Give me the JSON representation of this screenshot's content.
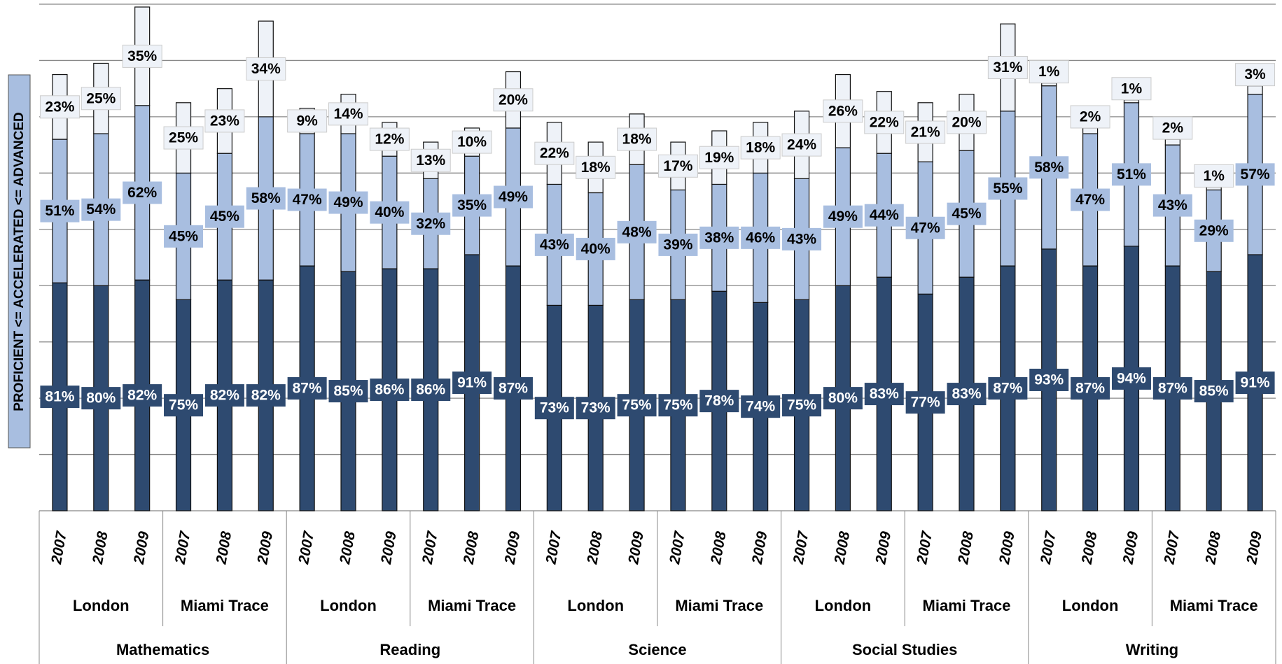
{
  "chart_data": {
    "type": "stacked-bar",
    "y_label": "PROFICIENT <= ACCELERATED <= ADVANCED",
    "categories": [
      "2007",
      "2008",
      "2009",
      "2007",
      "2008",
      "2009",
      "2007",
      "2008",
      "2009",
      "2007",
      "2008",
      "2009",
      "2007",
      "2008",
      "2009",
      "2007",
      "2008",
      "2009",
      "2007",
      "2008",
      "2009",
      "2007",
      "2008",
      "2009",
      "2007",
      "2008",
      "2009",
      "2007",
      "2008",
      "2009"
    ],
    "schools": [
      "London",
      "Miami Trace",
      "London",
      "Miami Trace",
      "London",
      "Miami Trace",
      "London",
      "Miami Trace",
      "London",
      "Miami Trace"
    ],
    "subjects": [
      "Mathematics",
      "Reading",
      "Science",
      "Social Studies",
      "Writing"
    ],
    "series": [
      {
        "color": "#2e4a70",
        "values": [
          81,
          80,
          82,
          75,
          82,
          82,
          87,
          85,
          86,
          86,
          91,
          87,
          73,
          73,
          75,
          75,
          78,
          74,
          75,
          80,
          83,
          77,
          83,
          87,
          93,
          87,
          94,
          87,
          85,
          91
        ],
        "value_labels": [
          "81%",
          "80%",
          "82%",
          "75%",
          "82%",
          "82%",
          "87%",
          "85%",
          "86%",
          "86%",
          "91%",
          "87%",
          "73%",
          "73%",
          "75%",
          "75%",
          "78%",
          "74%",
          "75%",
          "80%",
          "83%",
          "77%",
          "83%",
          "87%",
          "93%",
          "87%",
          "94%",
          "87%",
          "85%",
          "91%"
        ]
      },
      {
        "color": "#a8bee0",
        "values": [
          51,
          54,
          62,
          45,
          45,
          58,
          47,
          49,
          40,
          32,
          35,
          49,
          43,
          40,
          48,
          39,
          38,
          46,
          43,
          49,
          44,
          47,
          45,
          55,
          58,
          47,
          51,
          43,
          29,
          57
        ],
        "value_labels": [
          "51%",
          "54%",
          "62%",
          "45%",
          "45%",
          "58%",
          "47%",
          "49%",
          "40%",
          "32%",
          "35%",
          "49%",
          "43%",
          "40%",
          "48%",
          "39%",
          "38%",
          "46%",
          "43%",
          "49%",
          "44%",
          "47%",
          "45%",
          "55%",
          "58%",
          "47%",
          "51%",
          "43%",
          "29%",
          "57%"
        ]
      },
      {
        "color": "#eef2f8",
        "values": [
          23,
          25,
          35,
          25,
          23,
          34,
          9,
          14,
          12,
          13,
          10,
          20,
          22,
          18,
          18,
          17,
          19,
          18,
          24,
          26,
          22,
          21,
          20,
          31,
          1,
          2,
          1,
          2,
          1,
          3
        ],
        "value_labels": [
          "23%",
          "25%",
          "35%",
          "25%",
          "23%",
          "34%",
          "9%",
          "14%",
          "12%",
          "13%",
          "10%",
          "20%",
          "22%",
          "18%",
          "18%",
          "17%",
          "19%",
          "18%",
          "24%",
          "26%",
          "22%",
          "21%",
          "20%",
          "31%",
          "1%",
          "2%",
          "1%",
          "2%",
          "1%",
          "3%"
        ]
      }
    ],
    "ylim": [
      0,
      180
    ],
    "yticks": [
      0,
      20,
      40,
      60,
      80,
      100,
      120,
      140,
      160,
      180
    ],
    "grid": true
  }
}
